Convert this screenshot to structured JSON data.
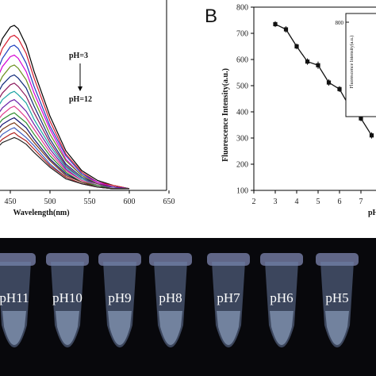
{
  "chart_data": [
    {
      "type": "line",
      "panel": "A",
      "xlabel": "Wavelength(nm)",
      "xticks": [
        "450",
        "500",
        "550",
        "600",
        "650"
      ],
      "xlim": [
        420,
        650
      ],
      "ylim": [
        0,
        1.0
      ],
      "annotation_top": "pH=3",
      "annotation_bottom": "pH=12",
      "grid": false,
      "x": [
        420,
        430,
        440,
        450,
        455,
        460,
        470,
        480,
        500,
        520,
        540,
        560,
        580,
        600
      ],
      "series": [
        {
          "color": "#000000",
          "values": [
            0.5,
            0.78,
            0.92,
            0.99,
            1.0,
            0.98,
            0.88,
            0.72,
            0.45,
            0.24,
            0.12,
            0.06,
            0.03,
            0.01
          ]
        },
        {
          "color": "#d61a2e",
          "values": [
            0.47,
            0.73,
            0.86,
            0.93,
            0.94,
            0.92,
            0.83,
            0.68,
            0.42,
            0.22,
            0.11,
            0.05,
            0.03,
            0.01
          ]
        },
        {
          "color": "#1f3fbf",
          "values": [
            0.44,
            0.68,
            0.8,
            0.87,
            0.88,
            0.86,
            0.77,
            0.63,
            0.39,
            0.21,
            0.1,
            0.05,
            0.02,
            0.01
          ]
        },
        {
          "color": "#d400d4",
          "values": [
            0.41,
            0.64,
            0.75,
            0.81,
            0.82,
            0.8,
            0.72,
            0.59,
            0.37,
            0.19,
            0.09,
            0.05,
            0.02,
            0.01
          ]
        },
        {
          "color": "#6a8f1c",
          "values": [
            0.38,
            0.59,
            0.69,
            0.75,
            0.76,
            0.74,
            0.67,
            0.55,
            0.34,
            0.18,
            0.09,
            0.04,
            0.02,
            0.01
          ]
        },
        {
          "color": "#102a7a",
          "values": [
            0.35,
            0.55,
            0.64,
            0.69,
            0.7,
            0.68,
            0.62,
            0.51,
            0.31,
            0.16,
            0.08,
            0.04,
            0.02,
            0.01
          ]
        },
        {
          "color": "#8b1a5c",
          "values": [
            0.33,
            0.51,
            0.59,
            0.64,
            0.65,
            0.63,
            0.57,
            0.47,
            0.29,
            0.15,
            0.07,
            0.04,
            0.02,
            0.01
          ]
        },
        {
          "color": "#1aa3a3",
          "values": [
            0.3,
            0.47,
            0.55,
            0.59,
            0.6,
            0.58,
            0.53,
            0.43,
            0.27,
            0.14,
            0.07,
            0.03,
            0.02,
            0.01
          ]
        },
        {
          "color": "#6a1fa8",
          "values": [
            0.28,
            0.43,
            0.5,
            0.54,
            0.55,
            0.53,
            0.48,
            0.4,
            0.25,
            0.13,
            0.06,
            0.03,
            0.02,
            0.01
          ]
        },
        {
          "color": "#e03c8c",
          "values": [
            0.26,
            0.4,
            0.46,
            0.5,
            0.51,
            0.49,
            0.44,
            0.37,
            0.23,
            0.12,
            0.06,
            0.03,
            0.01,
            0.01
          ]
        },
        {
          "color": "#2e8b2e",
          "values": [
            0.24,
            0.37,
            0.43,
            0.46,
            0.47,
            0.45,
            0.41,
            0.34,
            0.21,
            0.11,
            0.05,
            0.03,
            0.01,
            0.01
          ]
        },
        {
          "color": "#0f0f70",
          "values": [
            0.22,
            0.34,
            0.4,
            0.43,
            0.44,
            0.42,
            0.38,
            0.31,
            0.19,
            0.1,
            0.05,
            0.02,
            0.01,
            0.01
          ]
        },
        {
          "color": "#7a3a1a",
          "values": [
            0.2,
            0.31,
            0.37,
            0.4,
            0.41,
            0.39,
            0.35,
            0.29,
            0.18,
            0.09,
            0.05,
            0.02,
            0.01,
            0.01
          ]
        },
        {
          "color": "#4060c0",
          "values": [
            0.18,
            0.28,
            0.34,
            0.37,
            0.38,
            0.36,
            0.32,
            0.27,
            0.16,
            0.08,
            0.04,
            0.02,
            0.01,
            0.01
          ]
        },
        {
          "color": "#b02020",
          "values": [
            0.16,
            0.26,
            0.31,
            0.34,
            0.35,
            0.33,
            0.3,
            0.25,
            0.15,
            0.08,
            0.04,
            0.02,
            0.01,
            0.01
          ]
        },
        {
          "color": "#202020",
          "values": [
            0.15,
            0.24,
            0.29,
            0.31,
            0.32,
            0.31,
            0.28,
            0.23,
            0.14,
            0.07,
            0.04,
            0.02,
            0.01,
            0.01
          ]
        }
      ]
    },
    {
      "type": "line",
      "panel": "B",
      "title": "B",
      "ylabel": "Fluorescence Intensity(a.u.)",
      "xlabel": "pH",
      "xlim": [
        2,
        8
      ],
      "ylim": [
        100,
        800
      ],
      "xticks": [
        2,
        3,
        4,
        5,
        6,
        7
      ],
      "yticks": [
        100,
        200,
        300,
        400,
        500,
        600,
        700,
        800
      ],
      "inset_ylabel": "Fluorescence Intensity(a.u.)",
      "inset_ytick": "800",
      "x": [
        3,
        3.5,
        4,
        4.5,
        5,
        5.5,
        6,
        6.5,
        7,
        7.5
      ],
      "values": [
        735,
        715,
        650,
        592,
        578,
        512,
        487,
        415,
        375,
        310
      ],
      "error": [
        5,
        6,
        5,
        6,
        8,
        6,
        5,
        6,
        5,
        6
      ]
    }
  ],
  "photo": {
    "tube_labels": [
      "pH11",
      "pH10",
      "pH9",
      "pH8",
      "pH7",
      "pH6",
      "pH5"
    ]
  }
}
